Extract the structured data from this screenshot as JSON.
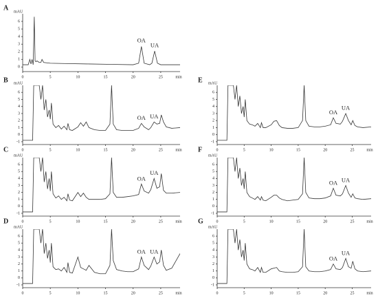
{
  "chart_data": [
    {
      "type": "line",
      "title": "A",
      "y_label": "mAU",
      "x_label": "min",
      "x": [
        0,
        1.0,
        1.3,
        1.5,
        1.7,
        1.9,
        2.1,
        2.25,
        2.4,
        2.6,
        3.0,
        3.3,
        3.5,
        3.8,
        5,
        8,
        12,
        16,
        20,
        21,
        21.5,
        22,
        23,
        23.4,
        23.9,
        24.4,
        25,
        28.5
      ],
      "series": [
        {
          "color": "#333333",
          "values": [
            0.3,
            0.3,
            1.0,
            0.4,
            1.0,
            0.3,
            6.6,
            0.8,
            0.7,
            0.8,
            0.6,
            0.6,
            1.0,
            0.6,
            0.5,
            0.45,
            0.4,
            0.35,
            0.3,
            0.5,
            2.7,
            0.5,
            0.3,
            0.5,
            2.1,
            0.5,
            0.3,
            0.3
          ]
        }
      ],
      "annotations": [
        {
          "text": "OA",
          "x": 21.5,
          "y": 3.4
        },
        {
          "text": "UA",
          "x": 23.9,
          "y": 2.8
        }
      ],
      "xlim": [
        0,
        28.5
      ],
      "ylim": [
        -0.6,
        7
      ],
      "xticks": [
        0,
        5,
        10,
        15,
        20,
        25
      ],
      "yticks": [
        0,
        1,
        2,
        3,
        4,
        5,
        6
      ]
    },
    {
      "type": "line",
      "title": "B",
      "y_label": "mAU",
      "x_label": "min",
      "x": [
        0,
        1.8,
        1.9,
        2.0,
        2.6,
        3.0,
        3.3,
        3.6,
        3.9,
        4.2,
        4.5,
        4.8,
        5.0,
        5.2,
        5.5,
        6,
        6.5,
        7,
        7.5,
        8,
        8.2,
        8.5,
        9,
        10,
        10.5,
        11,
        11.5,
        12,
        13,
        14,
        15,
        15.8,
        16.1,
        16.4,
        17,
        18,
        19,
        20,
        21,
        21.5,
        22,
        22.8,
        23.2,
        23.8,
        24.3,
        24.8,
        25.1,
        25.5,
        26,
        27,
        28.5
      ],
      "series": [
        {
          "color": "#333333",
          "values": [
            -0.8,
            -0.8,
            3,
            7,
            7,
            7,
            5,
            7,
            3.5,
            5,
            2.5,
            3.5,
            2.2,
            4.5,
            1.5,
            1,
            1.3,
            0.8,
            1.2,
            0.7,
            1.6,
            0.7,
            0.6,
            1.1,
            1.7,
            1.2,
            1.8,
            1.0,
            0.7,
            0.6,
            0.6,
            1.5,
            7,
            1.5,
            0.7,
            0.6,
            0.6,
            0.6,
            0.9,
            1.6,
            1.1,
            0.7,
            1.0,
            1.8,
            1.5,
            1.6,
            2.8,
            1.8,
            1.1,
            0.9,
            1.0
          ]
        }
      ],
      "annotations": [
        {
          "text": "OA",
          "x": 21.5,
          "y": 2.3
        },
        {
          "text": "UA",
          "x": 23.8,
          "y": 2.5
        }
      ],
      "xlim": [
        0,
        28.5
      ],
      "ylim": [
        -1.4,
        7
      ],
      "xticks": [
        0,
        5,
        10,
        15,
        20,
        25
      ],
      "yticks": [
        -1,
        0,
        1,
        2,
        3,
        4,
        5,
        6
      ]
    },
    {
      "type": "line",
      "title": "C",
      "y_label": "mAU",
      "x_label": "min",
      "x": [
        0,
        1.8,
        1.9,
        2.0,
        2.6,
        3.0,
        3.3,
        3.6,
        3.9,
        4.2,
        4.5,
        4.8,
        5.0,
        5.2,
        5.5,
        6,
        6.5,
        7,
        7.5,
        8,
        8.2,
        8.5,
        9,
        10,
        10.5,
        11,
        11.5,
        12,
        13,
        14,
        15,
        15.8,
        16.1,
        16.4,
        17,
        18,
        19,
        20,
        21,
        21.5,
        22,
        22.8,
        23.2,
        23.8,
        24.3,
        24.8,
        25.1,
        25.5,
        26,
        27,
        28.5
      ],
      "series": [
        {
          "color": "#333333",
          "values": [
            -0.8,
            -0.8,
            3,
            7,
            7,
            7,
            5,
            7,
            3.5,
            5,
            2.5,
            4,
            2.2,
            5,
            1.8,
            1.2,
            1.5,
            1.0,
            1.3,
            0.8,
            1.8,
            0.9,
            0.8,
            2.0,
            1.4,
            1.9,
            1.3,
            1.0,
            1.0,
            1.0,
            1.1,
            1.8,
            7,
            2.0,
            1.3,
            1.3,
            1.4,
            1.5,
            1.7,
            3.2,
            2.2,
            1.9,
            2.4,
            4.0,
            2.6,
            2.8,
            4.7,
            2.3,
            1.9,
            1.9,
            2.0
          ]
        }
      ],
      "annotations": [
        {
          "text": "OA",
          "x": 21.5,
          "y": 3.9
        },
        {
          "text": "UA",
          "x": 23.8,
          "y": 4.7
        }
      ],
      "xlim": [
        0,
        28.5
      ],
      "ylim": [
        -1.4,
        7
      ],
      "xticks": [
        0,
        5,
        10,
        15,
        20,
        25
      ],
      "yticks": [
        -1,
        0,
        1,
        2,
        3,
        4,
        5,
        6
      ]
    },
    {
      "type": "line",
      "title": "D",
      "y_label": "mAU",
      "x_label": "min",
      "x": [
        0,
        1.8,
        1.9,
        2.0,
        2.6,
        3.0,
        3.3,
        3.6,
        3.9,
        4.2,
        4.5,
        4.8,
        5.0,
        5.2,
        5.5,
        6,
        6.5,
        7,
        7.5,
        8,
        8.2,
        8.5,
        9,
        10,
        10.5,
        11,
        11.5,
        12,
        13,
        14,
        15,
        15.8,
        16.1,
        16.4,
        17,
        18,
        19,
        20,
        21,
        21.5,
        22,
        22.8,
        23.2,
        23.8,
        24.3,
        24.8,
        25.1,
        25.5,
        26,
        27,
        28.5
      ],
      "series": [
        {
          "color": "#333333",
          "values": [
            -0.8,
            -0.8,
            3,
            7,
            7,
            7,
            5,
            7,
            3.5,
            5,
            2.8,
            4,
            2.2,
            5,
            1.6,
            1.2,
            1.3,
            1.0,
            1.5,
            0.8,
            2.2,
            0.8,
            0.7,
            3.0,
            1.5,
            1.3,
            1.1,
            1.8,
            0.8,
            0.6,
            0.6,
            1.8,
            7,
            2.5,
            1.2,
            1.0,
            0.9,
            0.9,
            1.3,
            3.0,
            1.8,
            1.2,
            1.7,
            3.0,
            2.0,
            2.3,
            4.0,
            1.8,
            1.1,
            1.4,
            3.5
          ]
        }
      ],
      "annotations": [
        {
          "text": "OA",
          "x": 21.5,
          "y": 3.7
        },
        {
          "text": "UA",
          "x": 23.8,
          "y": 3.7
        }
      ],
      "xlim": [
        0,
        28.5
      ],
      "ylim": [
        -1.4,
        7
      ],
      "xticks": [
        0,
        5,
        10,
        15,
        20,
        25
      ],
      "yticks": [
        -1,
        0,
        1,
        2,
        3,
        4,
        5,
        6
      ]
    },
    {
      "type": "line",
      "title": "E",
      "y_label": "mAU",
      "x_label": "min",
      "x": [
        0,
        1.8,
        1.9,
        2.0,
        2.6,
        3.0,
        3.3,
        3.6,
        3.9,
        4.2,
        4.5,
        4.8,
        5.0,
        5.2,
        5.5,
        6,
        6.5,
        7,
        7.5,
        8,
        8.2,
        8.5,
        9,
        10,
        10.5,
        11,
        11.5,
        12,
        13,
        14,
        15,
        15.8,
        16.1,
        16.4,
        17,
        18,
        19,
        20,
        21,
        21.5,
        22,
        22.8,
        23.2,
        23.8,
        24.3,
        24.8,
        25.1,
        25.5,
        26,
        27,
        28.5
      ],
      "series": [
        {
          "color": "#333333",
          "values": [
            -0.8,
            -0.8,
            3,
            7,
            7,
            7,
            5,
            7,
            4,
            5.5,
            3,
            4,
            2.5,
            5,
            2,
            1.5,
            1.4,
            1.2,
            1.6,
            1.0,
            1.7,
            1.0,
            1.0,
            1.4,
            1.9,
            2.0,
            1.3,
            1.0,
            0.9,
            0.9,
            1.0,
            2.0,
            7,
            2.0,
            1.2,
            1.1,
            1.1,
            1.2,
            1.4,
            2.4,
            1.6,
            1.5,
            1.9,
            3.0,
            2.0,
            1.4,
            2.0,
            1.3,
            1.1,
            1.0,
            1.1
          ]
        }
      ],
      "annotations": [
        {
          "text": "OA",
          "x": 21.5,
          "y": 3.1
        },
        {
          "text": "UA",
          "x": 23.8,
          "y": 3.7
        }
      ],
      "xlim": [
        0,
        28.5
      ],
      "ylim": [
        -1.4,
        7
      ],
      "xticks": [
        0,
        5,
        10,
        15,
        20,
        25
      ],
      "yticks": [
        -1,
        0,
        1,
        2,
        3,
        4,
        5,
        6
      ]
    },
    {
      "type": "line",
      "title": "F",
      "y_label": "mAU",
      "x_label": "min",
      "x": [
        0,
        1.8,
        1.9,
        2.0,
        2.6,
        3.0,
        3.3,
        3.6,
        3.9,
        4.2,
        4.5,
        4.8,
        5.0,
        5.2,
        5.5,
        6,
        6.5,
        7,
        7.5,
        8,
        8.2,
        8.5,
        9,
        10,
        10.5,
        11,
        11.5,
        12,
        13,
        14,
        15,
        15.8,
        16.1,
        16.4,
        17,
        18,
        19,
        20,
        21,
        21.5,
        22,
        22.8,
        23.2,
        23.8,
        24.3,
        24.8,
        25.1,
        25.5,
        26,
        27,
        28.5
      ],
      "series": [
        {
          "color": "#333333",
          "values": [
            -0.8,
            -0.8,
            3,
            7,
            7,
            7,
            5,
            7,
            4,
            5.5,
            3,
            4,
            2.5,
            5,
            2,
            1.4,
            1.2,
            1.0,
            1.4,
            0.9,
            1.4,
            0.9,
            0.8,
            1.3,
            1.6,
            1.6,
            1.2,
            1.0,
            0.8,
            0.9,
            1.0,
            1.8,
            7,
            2.0,
            1.2,
            1.1,
            1.1,
            1.2,
            1.5,
            2.6,
            1.6,
            1.5,
            1.8,
            3.0,
            1.9,
            1.3,
            1.8,
            1.2,
            1.1,
            1.0,
            1.1
          ]
        }
      ],
      "annotations": [
        {
          "text": "OA",
          "x": 21.5,
          "y": 3.3
        },
        {
          "text": "UA",
          "x": 23.8,
          "y": 3.7
        }
      ],
      "xlim": [
        0,
        28.5
      ],
      "ylim": [
        -1.4,
        7
      ],
      "xticks": [
        0,
        5,
        10,
        15,
        20,
        25
      ],
      "yticks": [
        -1,
        0,
        1,
        2,
        3,
        4,
        5,
        6
      ]
    },
    {
      "type": "line",
      "title": "G",
      "y_label": "mAU",
      "x_label": "min",
      "x": [
        0,
        1.8,
        1.9,
        2.0,
        2.6,
        3.0,
        3.3,
        3.6,
        3.9,
        4.2,
        4.5,
        4.8,
        5.0,
        5.2,
        5.5,
        6,
        6.5,
        7,
        7.5,
        8,
        8.2,
        8.5,
        9,
        10,
        10.5,
        11,
        11.5,
        12,
        13,
        14,
        15,
        15.8,
        16.1,
        16.4,
        17,
        18,
        19,
        20,
        21,
        21.5,
        22,
        22.8,
        23.2,
        23.8,
        24.3,
        24.8,
        25.1,
        25.5,
        26,
        27,
        28.5
      ],
      "series": [
        {
          "color": "#333333",
          "values": [
            -0.8,
            -0.8,
            3,
            7,
            7,
            7,
            5,
            7,
            4,
            5.5,
            3,
            4,
            2.5,
            5,
            2,
            1.3,
            1.2,
            1.0,
            1.5,
            0.8,
            1.5,
            0.8,
            0.8,
            1.3,
            1.4,
            1.5,
            1.0,
            0.9,
            0.8,
            0.8,
            0.9,
            1.6,
            7,
            1.6,
            1.0,
            0.9,
            0.9,
            1.0,
            1.2,
            2.0,
            1.3,
            1.2,
            1.5,
            2.8,
            1.6,
            1.4,
            2.4,
            1.3,
            1.0,
            0.9,
            1.0
          ]
        }
      ],
      "annotations": [
        {
          "text": "OA",
          "x": 21.5,
          "y": 2.7
        },
        {
          "text": "UA",
          "x": 23.8,
          "y": 3.5
        }
      ],
      "xlim": [
        0,
        28.5
      ],
      "ylim": [
        -1.4,
        7
      ],
      "xticks": [
        0,
        5,
        10,
        15,
        20,
        25
      ],
      "yticks": [
        -1,
        0,
        1,
        2,
        3,
        4,
        5,
        6
      ]
    }
  ]
}
